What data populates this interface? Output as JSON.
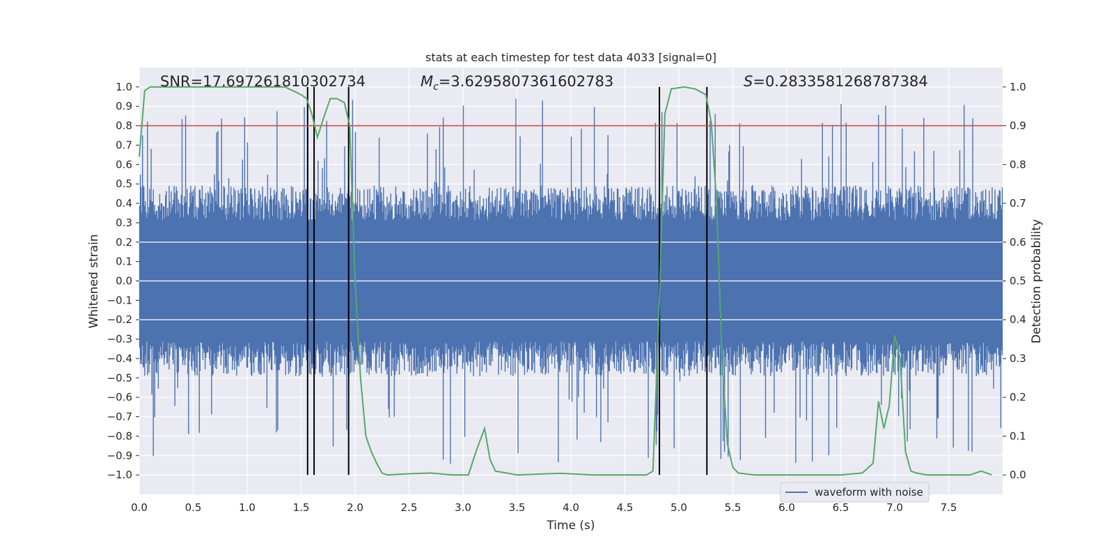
{
  "chart_data": {
    "type": "line",
    "title": "stats at each timestep for test data 4033 [signal=0]",
    "xlabel": "Time (s)",
    "ylabel": "Whitened strain",
    "y2label": "Detection probability",
    "xlim": [
      0,
      8.0
    ],
    "ylim": [
      -1.1,
      1.1
    ],
    "y2lim": [
      -0.05,
      1.05
    ],
    "xticks": [
      0.0,
      0.5,
      1.0,
      1.5,
      2.0,
      2.5,
      3.0,
      3.5,
      4.0,
      4.5,
      5.0,
      5.5,
      6.0,
      6.5,
      7.0,
      7.5
    ],
    "xtick_labels": [
      "0.0",
      "0.5",
      "1.0",
      "1.5",
      "2.0",
      "2.5",
      "3.0",
      "3.5",
      "4.0",
      "4.5",
      "5.0",
      "5.5",
      "6.0",
      "6.5",
      "7.0",
      "7.5"
    ],
    "yticks": [
      1.0,
      0.9,
      0.8,
      0.7,
      0.6,
      0.5,
      0.4,
      0.3,
      0.2,
      0.1,
      0.0,
      -0.1,
      -0.2,
      -0.3,
      -0.4,
      -0.5,
      -0.6,
      -0.7,
      -0.8,
      -0.9,
      -1.0
    ],
    "ytick_labels": [
      "1.0",
      "0.9",
      "0.8",
      "0.7",
      "0.6",
      "0.5",
      "0.4",
      "0.3",
      "0.2",
      "0.1",
      "0.0",
      "−0.1",
      "−0.2",
      "−0.3",
      "−0.4",
      "−0.5",
      "−0.6",
      "−0.7",
      "−0.8",
      "−0.9",
      "−1.0"
    ],
    "y2ticks": [
      1.0,
      0.9,
      0.8,
      0.7,
      0.6,
      0.5,
      0.4,
      0.3,
      0.2,
      0.1,
      0.0
    ],
    "y2tick_labels": [
      "1.0",
      "0.9",
      "0.8",
      "0.7",
      "0.6",
      "0.5",
      "0.4",
      "0.3",
      "0.2",
      "0.1",
      "0.0"
    ],
    "annotations": {
      "snr": "SNR=17.697261810302734",
      "mc_symbol": "M",
      "mc_sub": "c",
      "mc_value": "=3.6295807361602783",
      "s_symbol": "S",
      "s_value": "=0.2833581268787384"
    },
    "threshold": 0.9,
    "vlines": [
      1.56,
      1.62,
      1.94,
      4.82,
      5.26
    ],
    "legend": {
      "label": "waveform with noise",
      "position": "lower-right"
    },
    "waveform_envelope": {
      "typical_max": 0.4,
      "typical_min": -0.4,
      "peak_max": 1.0,
      "peak_min": -1.0
    },
    "series": [
      {
        "name": "Detection probability",
        "axis": "right",
        "x": [
          0.0,
          0.05,
          0.1,
          0.2,
          0.3,
          0.5,
          0.8,
          1.0,
          1.2,
          1.35,
          1.5,
          1.55,
          1.6,
          1.65,
          1.72,
          1.77,
          1.83,
          1.9,
          1.95,
          2.0,
          2.05,
          2.1,
          2.15,
          2.2,
          2.25,
          2.3,
          2.5,
          2.7,
          2.9,
          3.05,
          3.12,
          3.2,
          3.25,
          3.3,
          3.5,
          3.9,
          4.2,
          4.6,
          4.7,
          4.76,
          4.82,
          4.87,
          4.93,
          5.05,
          5.15,
          5.25,
          5.3,
          5.35,
          5.4,
          5.45,
          5.5,
          5.55,
          5.7,
          6.0,
          6.5,
          6.7,
          6.8,
          6.85,
          6.9,
          6.95,
          7.0,
          7.05,
          7.1,
          7.15,
          7.2,
          7.3,
          7.5,
          7.7,
          7.8,
          7.9
        ],
        "y": [
          0.82,
          0.99,
          1.0,
          1.0,
          1.0,
          1.0,
          1.0,
          1.0,
          1.0,
          1.0,
          0.98,
          0.97,
          0.93,
          0.87,
          0.93,
          0.97,
          0.97,
          0.96,
          0.9,
          0.5,
          0.25,
          0.1,
          0.06,
          0.03,
          0.005,
          0.0,
          0.003,
          0.005,
          0.0,
          0.0,
          0.06,
          0.12,
          0.04,
          0.01,
          0.0,
          0.004,
          0.0,
          0.0,
          0.0,
          0.01,
          0.45,
          0.93,
          0.995,
          1.0,
          0.995,
          0.98,
          0.91,
          0.7,
          0.3,
          0.08,
          0.02,
          0.005,
          0.0,
          0.0,
          0.0,
          0.005,
          0.03,
          0.19,
          0.12,
          0.18,
          0.36,
          0.3,
          0.06,
          0.01,
          0.005,
          0.0,
          0.0,
          0.0,
          0.01,
          0.0
        ]
      }
    ]
  },
  "colors": {
    "background": "#ffffff",
    "plot_background": "#eaeaf2",
    "grid": "#ffffff",
    "waveform": "#4c72b0",
    "probability": "#55a868",
    "threshold": "#c44e52",
    "vline": "#000000",
    "text": "#262626"
  }
}
